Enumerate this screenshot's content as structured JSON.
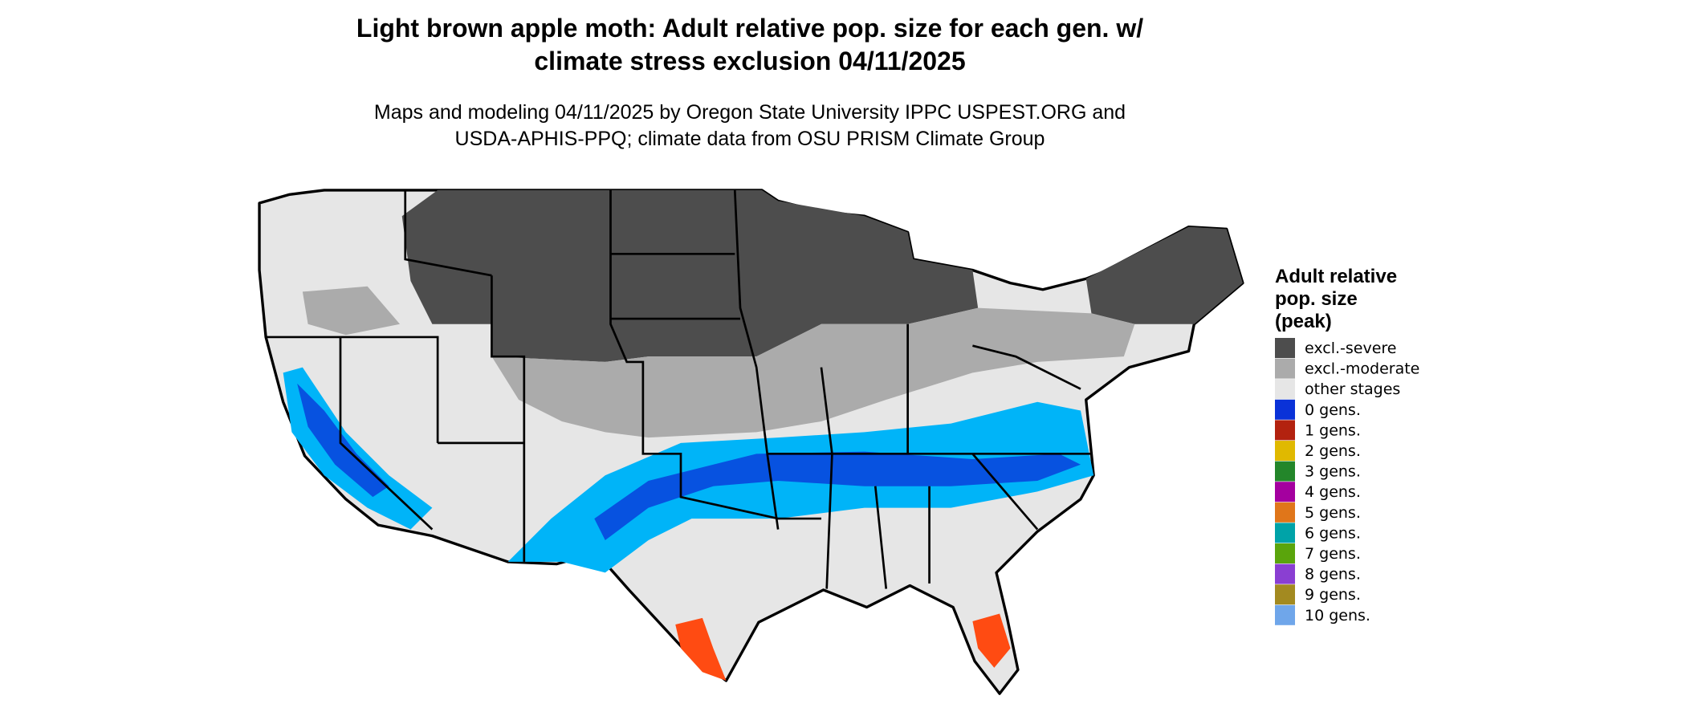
{
  "title": [
    "Light brown apple moth: Adult relative pop. size for each gen. w/",
    "climate stress exclusion 04/11/2025"
  ],
  "subtitle": [
    "Maps and modeling 04/11/2025 by Oregon State University IPPC USPEST.ORG and",
    "USDA-APHIS-PPQ; climate data from OSU PRISM Climate Group"
  ],
  "legend": {
    "title": [
      "Adult relative",
      "pop. size",
      "(peak)"
    ],
    "items": [
      {
        "label": "excl.-severe",
        "color": "#4d4d4d"
      },
      {
        "label": "excl.-moderate",
        "color": "#ababab"
      },
      {
        "label": "other stages",
        "color": "#e6e6e6"
      },
      {
        "label": "0 gens.",
        "color": "#0a32d8"
      },
      {
        "label": "1 gens.",
        "color": "#b3220f"
      },
      {
        "label": "2 gens.",
        "color": "#e0b900"
      },
      {
        "label": "3 gens.",
        "color": "#23862a"
      },
      {
        "label": "4 gens.",
        "color": "#a4009f"
      },
      {
        "label": "5 gens.",
        "color": "#e0761a"
      },
      {
        "label": "6 gens.",
        "color": "#00a3a8"
      },
      {
        "label": "7 gens.",
        "color": "#5aa50c"
      },
      {
        "label": "8 gens.",
        "color": "#8a3fd2"
      },
      {
        "label": "9 gens.",
        "color": "#a38a20"
      },
      {
        "label": "10 gens.",
        "color": "#6fa6ea"
      }
    ]
  }
}
